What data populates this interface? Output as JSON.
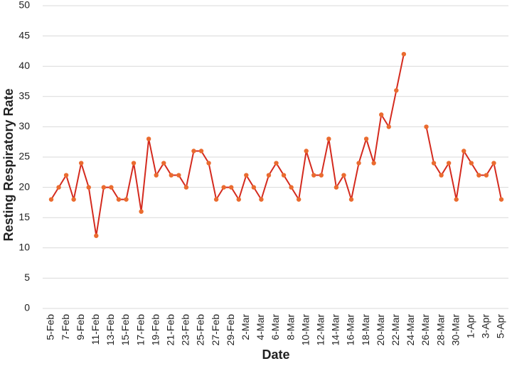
{
  "chart_data": {
    "type": "line",
    "x_label": "Date",
    "y_label": "Resting Respiratory Rate",
    "categories": [
      "5-Feb",
      null,
      "7-Feb",
      null,
      "9-Feb",
      null,
      "11-Feb",
      null,
      "13-Feb",
      null,
      "15-Feb",
      null,
      "17-Feb",
      null,
      "19-Feb",
      null,
      "21-Feb",
      null,
      "23-Feb",
      null,
      "25-Feb",
      null,
      "27-Feb",
      null,
      "29-Feb",
      null,
      "2-Mar",
      null,
      "4-Mar",
      null,
      "6-Mar",
      null,
      "8-Mar",
      null,
      "10-Mar",
      null,
      "12-Mar",
      null,
      "14-Mar",
      null,
      "16-Mar",
      null,
      "18-Mar",
      null,
      "20-Mar",
      null,
      "22-Mar",
      null,
      "24-Mar",
      null,
      "26-Mar",
      null,
      "28-Mar",
      null,
      "30-Mar",
      null,
      "1-Apr",
      null,
      "3-Apr",
      null,
      "5-Apr"
    ],
    "values": [
      18,
      20,
      22,
      18,
      24,
      20,
      12,
      20,
      20,
      18,
      18,
      24,
      16,
      28,
      22,
      24,
      22,
      22,
      20,
      26,
      26,
      24,
      18,
      20,
      20,
      18,
      22,
      20,
      18,
      22,
      24,
      22,
      20,
      18,
      26,
      22,
      22,
      28,
      20,
      22,
      18,
      24,
      28,
      24,
      32,
      30,
      36,
      42,
      null,
      null,
      30,
      24,
      22,
      24,
      18,
      26,
      24,
      22,
      22,
      24,
      18
    ],
    "color": "#d42a1e",
    "marker_color": "#ea6b2f",
    "ylim": [
      0,
      50
    ],
    "yticks": [
      0,
      5,
      10,
      15,
      20,
      25,
      30,
      35,
      40,
      45,
      50
    ],
    "grid": true
  }
}
